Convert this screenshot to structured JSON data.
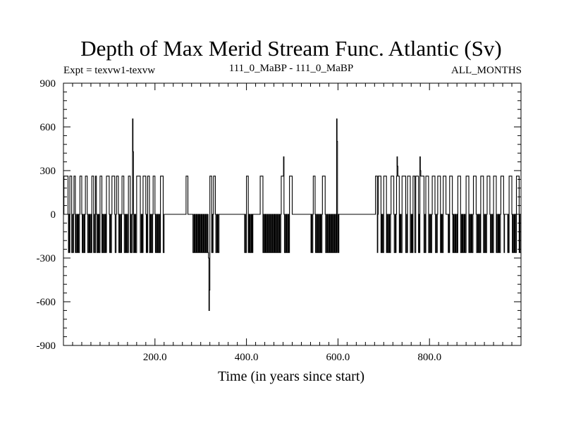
{
  "header": {
    "title": "Depth of Max Merid Stream Func. Atlantic (Sv)",
    "expt": "Expt = texvw1-texvw",
    "period": "111_0_MaBP - 111_0_MaBP",
    "months": "ALL_MONTHS"
  },
  "chart_data": {
    "type": "line",
    "xlabel": "Time (in years since start)",
    "ylabel": "",
    "xlim": [
      0,
      1000
    ],
    "ylim": [
      -900,
      900
    ],
    "xticks": [
      200,
      400,
      600,
      800
    ],
    "xtick_labels": [
      "200.0",
      "400.0",
      "600.0",
      "800.0"
    ],
    "yticks": [
      -900,
      -600,
      -300,
      0,
      300,
      600,
      900
    ],
    "ytick_labels": [
      "-900",
      "-600",
      "-300",
      "0",
      "300",
      "600",
      "900"
    ],
    "grid": false,
    "line_color": "#000000",
    "base_level": 0,
    "high_level": 262,
    "low_level": -262,
    "positive_segments": [
      [
        1,
        10
      ],
      [
        14,
        18
      ],
      [
        23,
        26
      ],
      [
        36,
        40
      ],
      [
        48,
        52
      ],
      [
        62,
        66
      ],
      [
        70,
        72
      ],
      [
        80,
        84
      ],
      [
        94,
        100
      ],
      [
        106,
        112
      ],
      [
        116,
        120
      ],
      [
        128,
        132
      ],
      [
        142,
        146
      ],
      [
        160,
        168
      ],
      [
        174,
        180
      ],
      [
        184,
        188
      ],
      [
        196,
        200
      ],
      [
        212,
        218
      ],
      [
        268,
        272
      ],
      [
        318,
        324
      ],
      [
        328,
        332
      ],
      [
        400,
        404
      ],
      [
        430,
        436
      ],
      [
        476,
        482
      ],
      [
        494,
        500
      ],
      [
        546,
        550
      ],
      [
        566,
        572
      ],
      [
        682,
        686
      ],
      [
        688,
        694
      ],
      [
        700,
        706
      ],
      [
        716,
        722
      ],
      [
        728,
        734
      ],
      [
        740,
        748
      ],
      [
        752,
        758
      ],
      [
        764,
        768
      ],
      [
        770,
        776
      ],
      [
        780,
        788
      ],
      [
        792,
        798
      ],
      [
        806,
        812
      ],
      [
        818,
        824
      ],
      [
        830,
        836
      ],
      [
        844,
        850
      ],
      [
        862,
        868
      ],
      [
        880,
        886
      ],
      [
        896,
        902
      ],
      [
        912,
        918
      ],
      [
        926,
        932
      ],
      [
        940,
        946
      ],
      [
        956,
        962
      ],
      [
        974,
        980
      ],
      [
        990,
        996
      ]
    ],
    "negative_gaps": [
      [
        0,
        2
      ],
      [
        220,
        268
      ],
      [
        272,
        282
      ],
      [
        340,
        396
      ],
      [
        414,
        430
      ],
      [
        496,
        540
      ],
      [
        602,
        682
      ],
      [
        700,
        706
      ],
      [
        834,
        840
      ],
      [
        964,
        970
      ]
    ],
    "spikes": [
      {
        "x": 151,
        "y": 655
      },
      {
        "x": 152,
        "y": 430
      },
      {
        "x": 317,
        "y": -300
      },
      {
        "x": 318,
        "y": -660
      },
      {
        "x": 319,
        "y": -520
      },
      {
        "x": 481,
        "y": 395
      },
      {
        "x": 597,
        "y": 655
      },
      {
        "x": 598,
        "y": 500
      },
      {
        "x": 729,
        "y": 395
      },
      {
        "x": 730,
        "y": 330
      },
      {
        "x": 779,
        "y": 395
      },
      {
        "x": 780,
        "y": 300
      }
    ]
  }
}
